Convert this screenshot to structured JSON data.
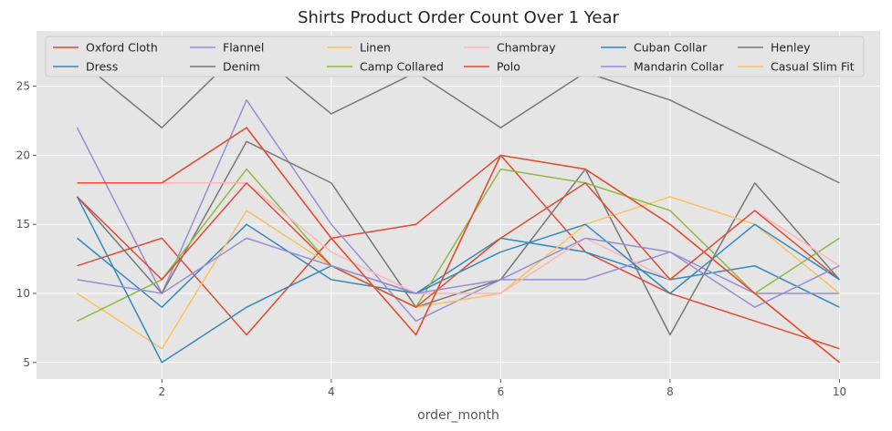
{
  "chart_data": {
    "type": "line",
    "title": "Shirts Product Order Count Over 1 Year",
    "xlabel": "order_month",
    "ylabel": "",
    "xlim": [
      0.52,
      10.48
    ],
    "ylim": [
      3.8,
      29.0
    ],
    "x": [
      1,
      2,
      3,
      4,
      5,
      6,
      7,
      8,
      9,
      10
    ],
    "x_ticks": [
      2,
      4,
      6,
      8,
      10
    ],
    "y_ticks": [
      5,
      10,
      15,
      20,
      25
    ],
    "grid": true,
    "legend_position": "top",
    "series": [
      {
        "name": "Oxford Cloth",
        "color": "#E24A33",
        "values": [
          12,
          14,
          7,
          14,
          15,
          20,
          13,
          10,
          8,
          6
        ]
      },
      {
        "name": "Dress",
        "color": "#348ABD",
        "values": [
          14,
          9,
          15,
          11,
          10,
          14,
          13,
          11,
          12,
          9
        ]
      },
      {
        "name": "Flannel",
        "color": "#988ED5",
        "values": [
          22,
          10,
          24,
          15,
          8,
          11,
          11,
          13,
          10,
          10
        ]
      },
      {
        "name": "Denim",
        "color": "#777777",
        "values": [
          17,
          10,
          21,
          18,
          9,
          11,
          19,
          7,
          18,
          11
        ]
      },
      {
        "name": "Linen",
        "color": "#FBC15E",
        "values": [
          10,
          6,
          16,
          12,
          9,
          10,
          15,
          17,
          15,
          10
        ]
      },
      {
        "name": "Camp Collared",
        "color": "#8EBA42",
        "values": [
          8,
          11,
          19,
          12,
          9,
          19,
          18,
          16,
          10,
          14
        ]
      },
      {
        "name": "Chambray",
        "color": "#FFB5B8",
        "values": [
          18,
          18,
          18,
          13,
          10,
          10,
          14,
          11,
          16,
          12
        ]
      },
      {
        "name": "Polo",
        "color": "#E24A33",
        "values": [
          17,
          11,
          18,
          12,
          9,
          14,
          18,
          11,
          16,
          11
        ]
      },
      {
        "name": "Cuban Collar",
        "color": "#348ABD",
        "values": [
          17,
          5,
          9,
          12,
          10,
          13,
          15,
          10,
          15,
          11
        ]
      },
      {
        "name": "Mandarin Collar",
        "color": "#988ED5",
        "values": [
          11,
          10,
          14,
          12,
          10,
          11,
          14,
          13,
          9,
          12
        ]
      },
      {
        "name": "Henley",
        "color": "#777777",
        "values": [
          27,
          22,
          28,
          23,
          26,
          22,
          26,
          24,
          21,
          18
        ]
      },
      {
        "name": "Casual Slim Fit",
        "color": "#FBC15E",
        "values": [
          18,
          18,
          22,
          14,
          7,
          20,
          19,
          15,
          10,
          5
        ]
      },
      {
        "name": "",
        "color": "#8EBA42",
        "values": [
          18,
          18,
          22,
          14,
          7,
          20,
          19,
          15,
          10,
          5
        ]
      },
      {
        "name": "",
        "color": "#FFB5B8",
        "values": [
          18,
          18,
          22,
          14,
          7,
          20,
          19,
          15,
          10,
          5
        ]
      },
      {
        "name": "",
        "color": "#E24A33",
        "values": [
          18,
          18,
          22,
          14,
          7,
          20,
          19,
          15,
          10,
          5
        ]
      }
    ]
  }
}
